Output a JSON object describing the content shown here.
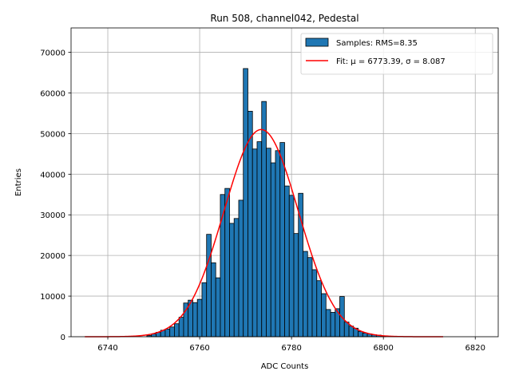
{
  "chart_data": {
    "type": "bar",
    "title": "Run 508, channel042, Pedestal",
    "xlabel": "ADC Counts",
    "ylabel": "Entries",
    "xlim": [
      6732,
      6825
    ],
    "ylim": [
      0,
      76000
    ],
    "xticks": [
      6740,
      6760,
      6780,
      6800,
      6820
    ],
    "yticks": [
      0,
      10000,
      20000,
      30000,
      40000,
      50000,
      60000,
      70000
    ],
    "grid": true,
    "legend_position": "top-right",
    "bin_width": 1,
    "histogram": {
      "name": "Samples: RMS=8.35",
      "color": "#1f77b4",
      "edge_color": "#000000",
      "bin_centers": [
        6749,
        6750,
        6751,
        6752,
        6753,
        6754,
        6755,
        6756,
        6757,
        6758,
        6759,
        6760,
        6761,
        6762,
        6763,
        6764,
        6765,
        6766,
        6767,
        6768,
        6769,
        6770,
        6771,
        6772,
        6773,
        6774,
        6775,
        6776,
        6777,
        6778,
        6779,
        6780,
        6781,
        6782,
        6783,
        6784,
        6785,
        6786,
        6787,
        6788,
        6789,
        6790,
        6791,
        6792,
        6793,
        6794,
        6795,
        6796,
        6797,
        6798,
        6799,
        6800
      ],
      "counts": [
        300,
        700,
        1100,
        1600,
        1900,
        2400,
        3200,
        4800,
        8300,
        9000,
        8400,
        9200,
        13300,
        25200,
        18200,
        14500,
        35000,
        36500,
        27900,
        29100,
        33600,
        66000,
        55500,
        46200,
        48000,
        57900,
        46400,
        42800,
        45800,
        47800,
        37100,
        34800,
        25400,
        35300,
        21000,
        19500,
        16500,
        13800,
        10600,
        6700,
        6000,
        6900,
        9900,
        3600,
        2600,
        2100,
        1300,
        900,
        700,
        500,
        400,
        200
      ]
    },
    "fit": {
      "name": "Fit: μ = 6773.39, σ = 8.087",
      "mu": 6773.39,
      "sigma": 8.087,
      "amplitude": 51000,
      "x_range": [
        6735,
        6813
      ],
      "color": "#ff0000"
    }
  }
}
